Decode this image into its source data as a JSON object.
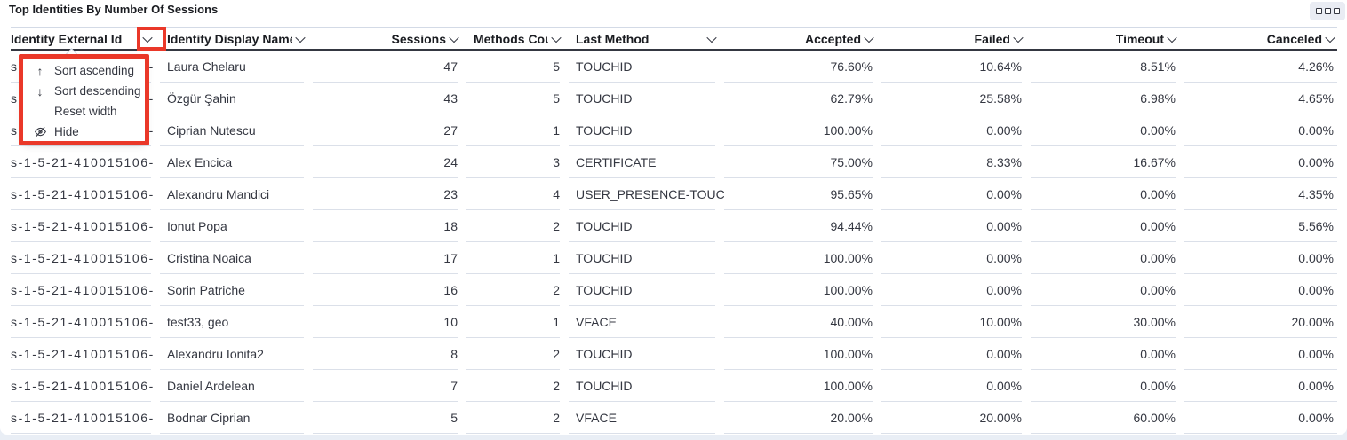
{
  "panel": {
    "title": "Top Identities By Number Of Sessions"
  },
  "table": {
    "columns": [
      {
        "label": "Identity External Id",
        "align": "left"
      },
      {
        "label": "Identity Display Name",
        "align": "left"
      },
      {
        "label": "Sessions",
        "align": "right"
      },
      {
        "label": "Methods Count",
        "align": "right"
      },
      {
        "label": "Last Method",
        "align": "left"
      },
      {
        "label": "Accepted",
        "align": "right"
      },
      {
        "label": "Failed",
        "align": "right"
      },
      {
        "label": "Timeout",
        "align": "right"
      },
      {
        "label": "Canceled",
        "align": "right"
      }
    ],
    "rows": [
      {
        "cells": [
          "s-1-5-21-410015106-",
          "Laura Chelaru",
          "47",
          "5",
          "TOUCHID",
          "76.60%",
          "10.64%",
          "8.51%",
          "4.26%"
        ]
      },
      {
        "cells": [
          "s-1-5-21-410015106-",
          "Özgür Şahin",
          "43",
          "5",
          "TOUCHID",
          "62.79%",
          "25.58%",
          "6.98%",
          "4.65%"
        ]
      },
      {
        "cells": [
          "s-1-5-21-410015106-",
          "Ciprian Nutescu",
          "27",
          "1",
          "TOUCHID",
          "100.00%",
          "0.00%",
          "0.00%",
          "0.00%"
        ]
      },
      {
        "cells": [
          "s-1-5-21-410015106-",
          "Alex Encica",
          "24",
          "3",
          "CERTIFICATE",
          "75.00%",
          "8.33%",
          "16.67%",
          "0.00%"
        ]
      },
      {
        "cells": [
          "s-1-5-21-410015106-",
          "Alexandru Mandici",
          "23",
          "4",
          "USER_PRESENCE-TOUC",
          "95.65%",
          "0.00%",
          "0.00%",
          "4.35%"
        ]
      },
      {
        "cells": [
          "s-1-5-21-410015106-",
          "Ionut Popa",
          "18",
          "2",
          "TOUCHID",
          "94.44%",
          "0.00%",
          "0.00%",
          "5.56%"
        ]
      },
      {
        "cells": [
          "s-1-5-21-410015106-",
          "Cristina Noaica",
          "17",
          "1",
          "TOUCHID",
          "100.00%",
          "0.00%",
          "0.00%",
          "0.00%"
        ]
      },
      {
        "cells": [
          "s-1-5-21-410015106-",
          "Sorin Patriche",
          "16",
          "2",
          "TOUCHID",
          "100.00%",
          "0.00%",
          "0.00%",
          "0.00%"
        ]
      },
      {
        "cells": [
          "s-1-5-21-410015106-",
          "test33, geo",
          "10",
          "1",
          "VFACE",
          "40.00%",
          "10.00%",
          "30.00%",
          "20.00%"
        ]
      },
      {
        "cells": [
          "s-1-5-21-410015106-",
          "Alexandru Ionita2",
          "8",
          "2",
          "TOUCHID",
          "100.00%",
          "0.00%",
          "0.00%",
          "0.00%"
        ]
      },
      {
        "cells": [
          "s-1-5-21-410015106-",
          "Daniel Ardelean",
          "7",
          "2",
          "TOUCHID",
          "100.00%",
          "0.00%",
          "0.00%",
          "0.00%"
        ]
      },
      {
        "cells": [
          "s-1-5-21-410015106-",
          "Bodnar Ciprian",
          "5",
          "2",
          "VFACE",
          "20.00%",
          "20.00%",
          "60.00%",
          "0.00%"
        ]
      }
    ]
  },
  "column_menu": {
    "items": [
      {
        "icon": "sort-ascending-icon",
        "label": "Sort ascending"
      },
      {
        "icon": "sort-descending-icon",
        "label": "Sort descending"
      },
      {
        "icon": "",
        "label": "Reset width"
      },
      {
        "icon": "eye-closed-icon",
        "label": "Hide"
      }
    ]
  },
  "annotations": {
    "highlight_color": "#ea3829"
  }
}
